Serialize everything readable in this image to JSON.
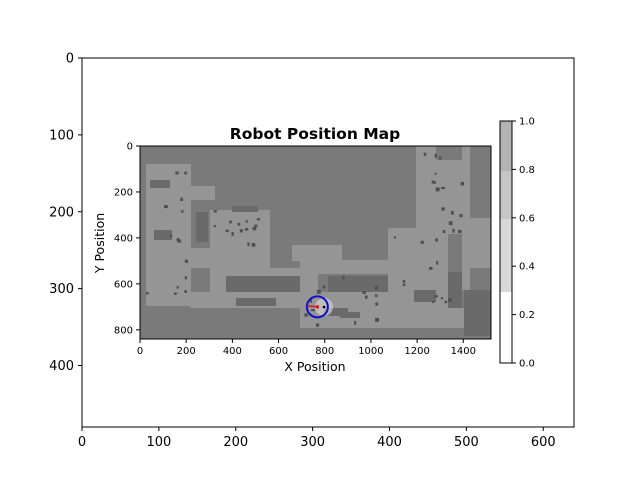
{
  "chart_data": [
    {
      "type": "image",
      "role": "outer-figure-axes",
      "xlim": [
        0,
        640
      ],
      "ylim": [
        480,
        0
      ],
      "x_ticks": [
        0,
        100,
        200,
        300,
        400,
        500,
        600
      ],
      "y_ticks": [
        0,
        100,
        200,
        300,
        400
      ]
    },
    {
      "type": "heatmap",
      "role": "map",
      "title": "Robot Position Map",
      "xlabel": "X Position",
      "ylabel": "Y Position",
      "xlim": [
        0,
        1520
      ],
      "ylim": [
        840,
        0
      ],
      "x_ticks": [
        0,
        200,
        400,
        600,
        800,
        1000,
        1200,
        1400
      ],
      "y_ticks": [
        0,
        200,
        400,
        600,
        800
      ],
      "robot": {
        "x": 768,
        "y": 700,
        "circle_color": "#1010c8",
        "heading_color": "#d02020"
      },
      "colormap": "gray",
      "colorbar": {
        "ticks": [
          0.0,
          0.2,
          0.4,
          0.6,
          0.8,
          1.0
        ],
        "min": 0.0,
        "max": 1.0,
        "colormap": "gray"
      }
    }
  ],
  "outer_ticks_x": [
    "0",
    "100",
    "200",
    "300",
    "400",
    "500",
    "600"
  ],
  "outer_ticks_y": [
    "0",
    "100",
    "200",
    "300",
    "400"
  ],
  "map_title": "Robot Position Map",
  "map_xlabel": "X Position",
  "map_ylabel": "Y Position",
  "map_ticks_x": [
    "0",
    "200",
    "400",
    "600",
    "800",
    "1000",
    "1200",
    "1400"
  ],
  "map_ticks_y": [
    "0",
    "200",
    "400",
    "600",
    "800"
  ],
  "colorbar_ticks": [
    "0.0",
    "0.2",
    "0.4",
    "0.6",
    "0.8",
    "1.0"
  ]
}
